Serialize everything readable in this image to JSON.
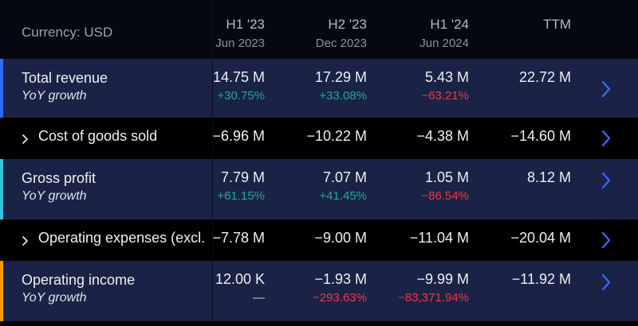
{
  "header": {
    "currency": "Currency: USD",
    "columns": [
      {
        "period": "H1 '23",
        "date": "Jun 2023"
      },
      {
        "period": "H2 '23",
        "date": "Dec 2023"
      },
      {
        "period": "H1 '24",
        "date": "Jun 2024"
      },
      {
        "period": "TTM",
        "date": ""
      }
    ]
  },
  "rows": [
    {
      "label": "Total revenue",
      "sublabel": "YoY growth",
      "accent": "#2f6bff",
      "values": [
        "14.75 M",
        "17.29 M",
        "5.43 M",
        "22.72 M"
      ],
      "growth": [
        "+30.75%",
        "+33.08%",
        "−63.21%",
        ""
      ]
    },
    {
      "label": "Cost of goods sold",
      "values": [
        "−6.96 M",
        "−10.22 M",
        "−4.38 M",
        "−14.60 M"
      ]
    },
    {
      "label": "Gross profit",
      "sublabel": "YoY growth",
      "accent": "#36c5e0",
      "values": [
        "7.79 M",
        "7.07 M",
        "1.05 M",
        "8.12 M"
      ],
      "growth": [
        "+61.15%",
        "+41.45%",
        "−86.54%",
        ""
      ]
    },
    {
      "label": "Operating expenses (excl.",
      "values": [
        "−7.78 M",
        "−9.00 M",
        "−11.04 M",
        "−20.04 M"
      ]
    },
    {
      "label": "Operating income",
      "sublabel": "YoY growth",
      "accent": "#ff9800",
      "values": [
        "12.00 K",
        "−1.93 M",
        "−9.99 M",
        "−11.92 M"
      ],
      "growth": [
        "—",
        "−293.63%",
        "−83,371.94%",
        ""
      ]
    }
  ],
  "colors": {
    "chevron": "#2f6bff",
    "positive": "#26a69a",
    "negative": "#f23645"
  }
}
